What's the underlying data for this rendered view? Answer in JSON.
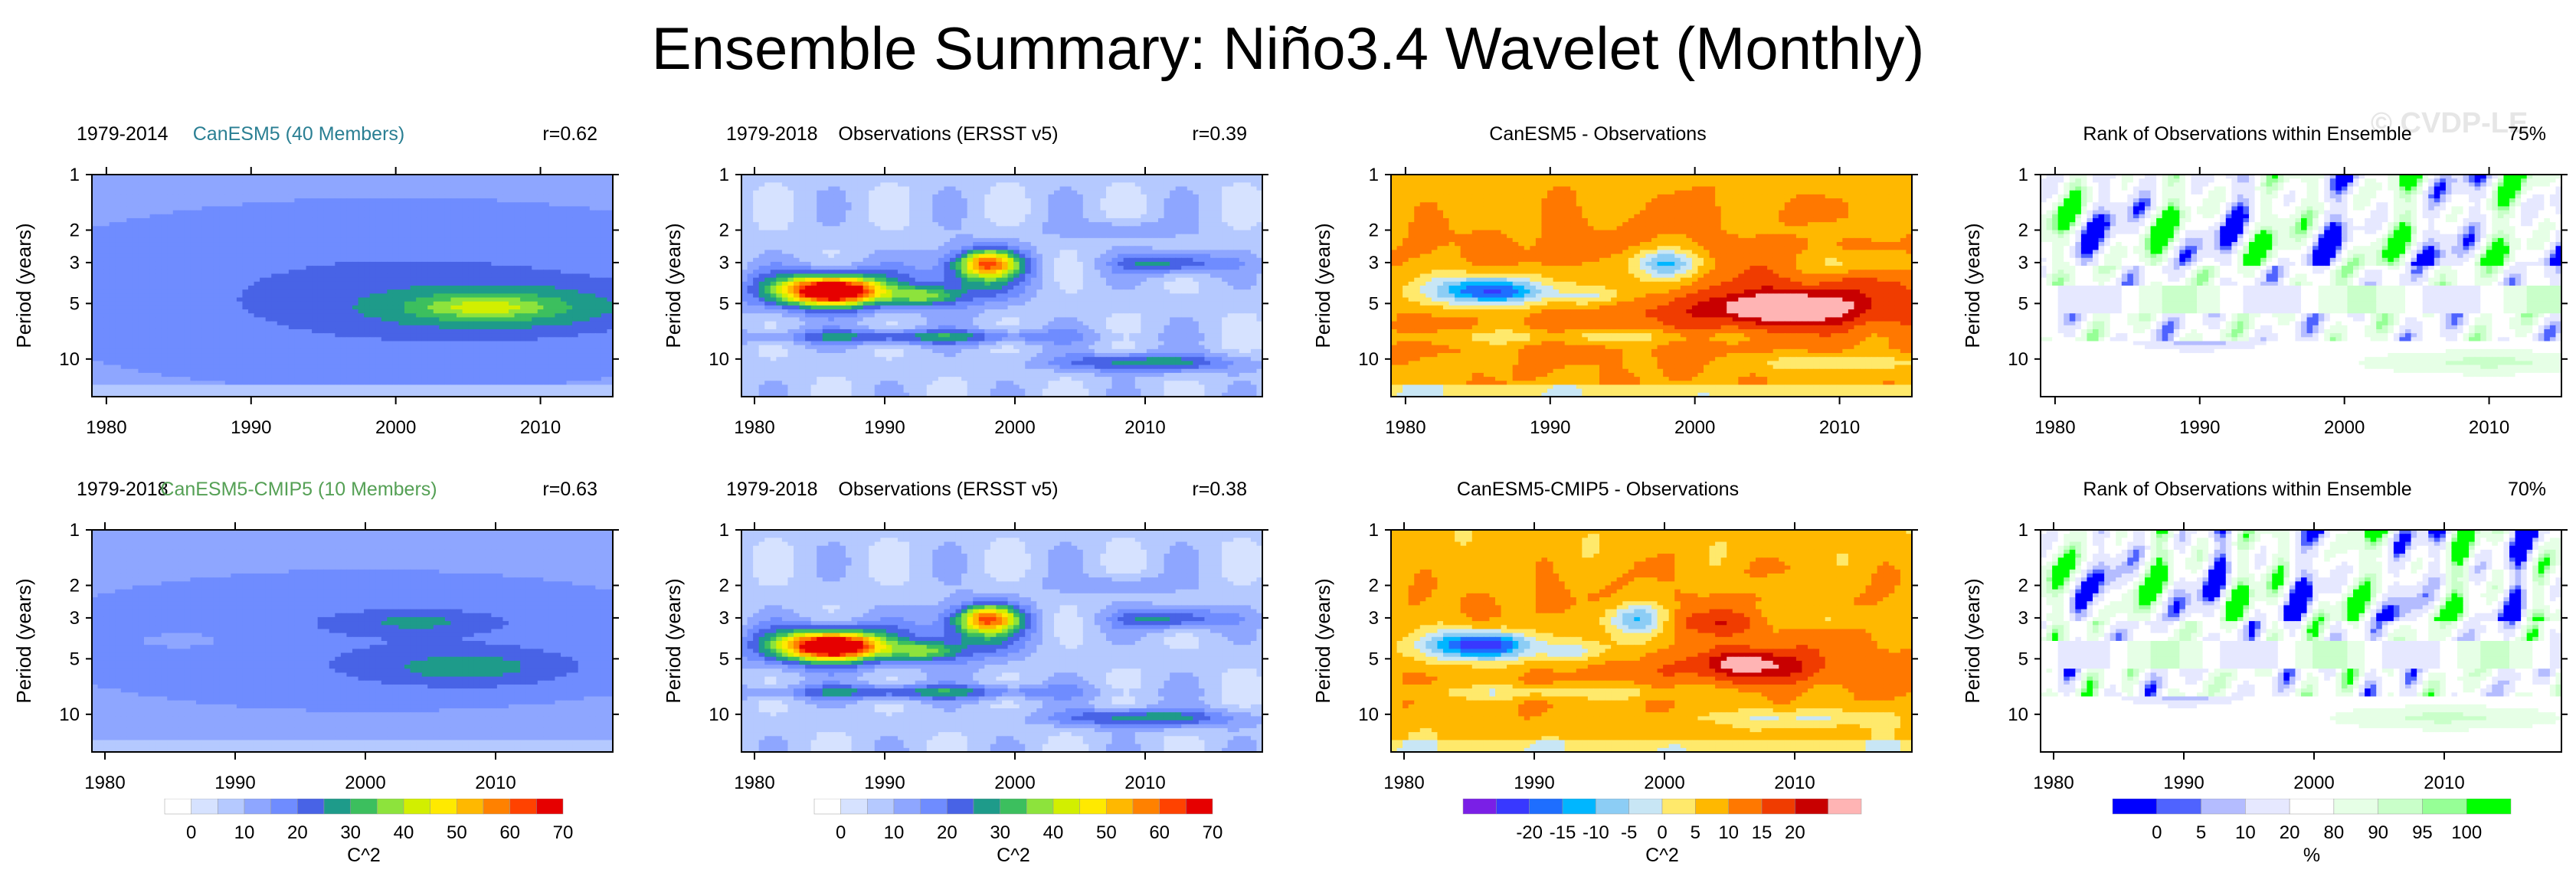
{
  "page": {
    "title": "Ensemble Summary: Niño3.4 Wavelet (Monthly)",
    "watermark": "© CVDP-LE"
  },
  "colorbars": {
    "power": {
      "colors": [
        "#ffffff",
        "#d6e2ff",
        "#b5c9ff",
        "#8ea6ff",
        "#6f8cff",
        "#4863e6",
        "#1e9b8a",
        "#3cbf5e",
        "#8de33c",
        "#d2ef00",
        "#ffe900",
        "#ffb800",
        "#ff8100",
        "#ff4200",
        "#e60000"
      ],
      "labels": [
        "0",
        "10",
        "20",
        "30",
        "40",
        "50",
        "60",
        "70"
      ],
      "unit": "C^2"
    },
    "diff": {
      "colors": [
        "#7a1fe6",
        "#3838ff",
        "#1e6eff",
        "#00b6ff",
        "#8ccdf5",
        "#c8e6f5",
        "#ffe96b",
        "#ffb800",
        "#ff7800",
        "#f03c00",
        "#c80000",
        "#ffb4b4"
      ],
      "labels": [
        "-20",
        "-15",
        "-10",
        "-5",
        "0",
        "5",
        "10",
        "15",
        "20"
      ],
      "unit": "C^2"
    },
    "rank": {
      "colors": [
        "#0000ff",
        "#4f63ff",
        "#b4bcff",
        "#e6e8ff",
        "#ffffff",
        "#e6ffe6",
        "#c9ffc9",
        "#96ff96",
        "#00ff00"
      ],
      "labels": [
        "0",
        "5",
        "10",
        "20",
        "80",
        "90",
        "95",
        "100"
      ],
      "unit": "%"
    }
  },
  "panels": [
    {
      "id": "p11",
      "title_center": "CanESM5 (40 Members)",
      "title_left": "1979-2014",
      "title_right": "r=0.62",
      "center_color": "#2a7f93",
      "kind": "ens1",
      "cmap": "power",
      "years": [
        1979,
        2014
      ]
    },
    {
      "id": "p12",
      "title_center": "Observations (ERSST v5)",
      "title_left": "1979-2018",
      "title_right": "r=0.39",
      "center_color": "#000000",
      "kind": "obs",
      "cmap": "power",
      "years": [
        1979,
        2018
      ]
    },
    {
      "id": "p13",
      "title_center": "CanESM5 - Observations",
      "title_left": "",
      "title_right": "",
      "center_color": "#000000",
      "kind": "diff1",
      "cmap": "diff",
      "years": [
        1979,
        2014
      ]
    },
    {
      "id": "p14",
      "title_center": "Rank of Observations within Ensemble",
      "title_left": "",
      "title_right": "75%",
      "center_color": "#000000",
      "kind": "rank1",
      "cmap": "rank",
      "years": [
        1979,
        2014
      ]
    },
    {
      "id": "p21",
      "title_center": "CanESM5-CMIP5 (10 Members)",
      "title_left": "1979-2018",
      "title_right": "r=0.63",
      "center_color": "#55a055",
      "kind": "ens2",
      "cmap": "power",
      "years": [
        1979,
        2018
      ]
    },
    {
      "id": "p22",
      "title_center": "Observations (ERSST v5)",
      "title_left": "1979-2018",
      "title_right": "r=0.38",
      "center_color": "#000000",
      "kind": "obs",
      "cmap": "power",
      "years": [
        1979,
        2018
      ]
    },
    {
      "id": "p23",
      "title_center": "CanESM5-CMIP5 - Observations",
      "title_left": "",
      "title_right": "",
      "center_color": "#000000",
      "kind": "diff2",
      "cmap": "diff",
      "years": [
        1979,
        2018
      ]
    },
    {
      "id": "p24",
      "title_center": "Rank of Observations within Ensemble",
      "title_left": "",
      "title_right": "70%",
      "center_color": "#000000",
      "kind": "rank2",
      "cmap": "rank",
      "years": [
        1979,
        2018
      ]
    }
  ],
  "chart_data": {
    "type": "heatmap",
    "title": "Ensemble Summary: Niño3.4 Wavelet (Monthly)",
    "xlabel": "",
    "ylabel": "Period (years)",
    "x_ticks": [
      "1980",
      "1990",
      "2000",
      "2010"
    ],
    "y_ticks": [
      "1",
      "2",
      "3",
      "5",
      "10"
    ],
    "y_scale": "log",
    "y_range_years": [
      1,
      16
    ],
    "features": {
      "ensemble_peak_period_years": 5.3,
      "ensemble_peak_year": 2006,
      "obs_peak_period_years": 4.3,
      "obs_peak_year": 1986,
      "obs_secondary_peak": {
        "year": 1998,
        "period": 3.0
      }
    },
    "panel_values": [
      {
        "panel": "CanESM5 (40 Members)",
        "years": "1979-2014",
        "r": 0.62
      },
      {
        "panel": "Observations (ERSST v5)",
        "years": "1979-2018",
        "r": 0.39
      },
      {
        "panel": "CanESM5-CMIP5 (10 Members)",
        "years": "1979-2018",
        "r": 0.63
      },
      {
        "panel": "Observations (ERSST v5)",
        "years": "1979-2018",
        "r": 0.38
      },
      {
        "panel": "Rank of Observations within Ensemble",
        "rank_percent": 75
      },
      {
        "panel": "Rank of Observations within Ensemble",
        "rank_percent": 70
      }
    ]
  },
  "axis": {
    "ylabel": "Period (years)",
    "x_ticks": [
      "1980",
      "1990",
      "2000",
      "2010"
    ],
    "y_ticks": [
      "1",
      "2",
      "3",
      "5",
      "10"
    ]
  }
}
